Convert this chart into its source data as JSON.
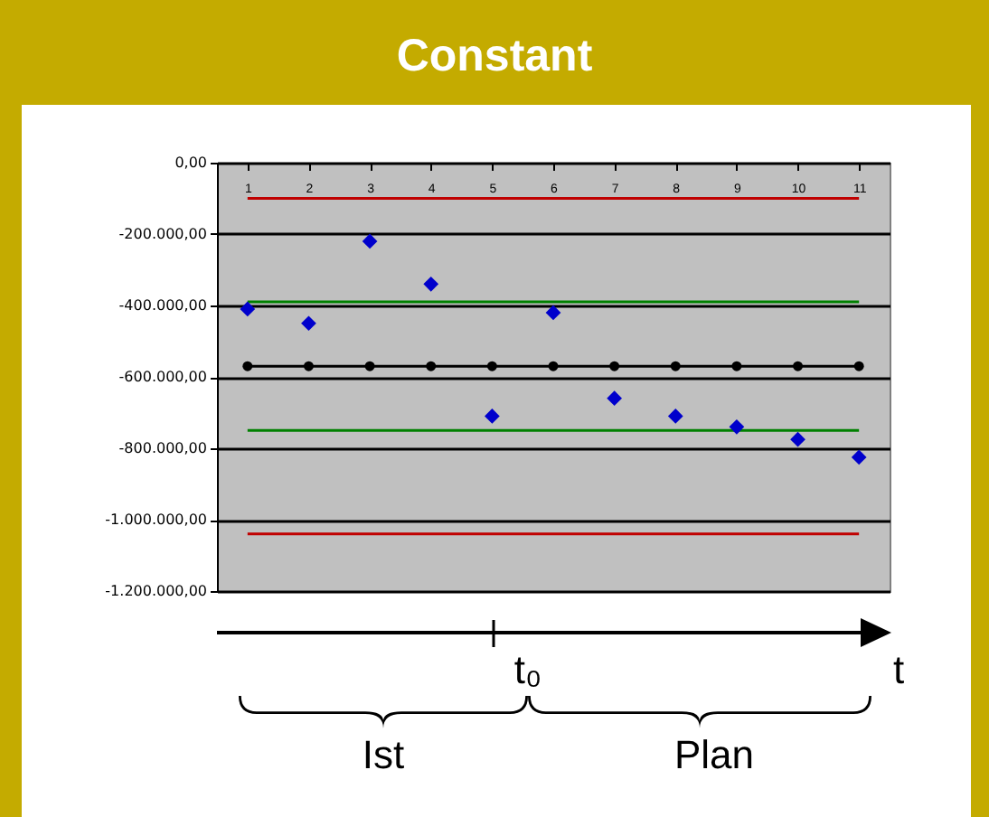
{
  "chart_data": {
    "type": "scatter",
    "title": "Constant",
    "categories": [
      "1",
      "2",
      "3",
      "4",
      "5",
      "6",
      "7",
      "8",
      "9",
      "10",
      "11"
    ],
    "series": [
      {
        "type": "line",
        "color": "#c00000",
        "marker": "none",
        "values": [
          -100000,
          -100000,
          -100000,
          -100000,
          -100000,
          -100000,
          -100000,
          -100000,
          -100000,
          -100000,
          -100000
        ]
      },
      {
        "type": "line",
        "color": "#008000",
        "marker": "none",
        "values": [
          -390000,
          -390000,
          -390000,
          -390000,
          -390000,
          -390000,
          -390000,
          -390000,
          -390000,
          -390000,
          -390000
        ]
      },
      {
        "type": "line",
        "color": "#000000",
        "marker": "circle",
        "values": [
          -570000,
          -570000,
          -570000,
          -570000,
          -570000,
          -570000,
          -570000,
          -570000,
          -570000,
          -570000,
          -570000
        ]
      },
      {
        "type": "line",
        "color": "#008000",
        "marker": "none",
        "values": [
          -750000,
          -750000,
          -750000,
          -750000,
          -750000,
          -750000,
          -750000,
          -750000,
          -750000,
          -750000,
          -750000
        ]
      },
      {
        "type": "line",
        "color": "#c00000",
        "marker": "none",
        "values": [
          -1040000,
          -1040000,
          -1040000,
          -1040000,
          -1040000,
          -1040000,
          -1040000,
          -1040000,
          -1040000,
          -1040000,
          -1040000
        ]
      },
      {
        "color": "#0000cc",
        "marker": "diamond",
        "values": [
          -410000,
          -450000,
          -220000,
          -340000,
          -710000,
          -420000,
          -660000,
          -710000,
          -740000,
          -775000,
          -825000
        ]
      }
    ],
    "ylim": [
      -1200000,
      0
    ],
    "yticks": [
      {
        "value": 0,
        "label": "0,00"
      },
      {
        "value": -200000,
        "label": "-200.000,00"
      },
      {
        "value": -400000,
        "label": "-400.000,00"
      },
      {
        "value": -600000,
        "label": "-600.000,00"
      },
      {
        "value": -800000,
        "label": "-800.000,00"
      },
      {
        "value": -1000000,
        "label": "-1.000.000,00"
      },
      {
        "value": -1200000,
        "label": "-1.200.000,00"
      }
    ],
    "grid": "y",
    "annotations": [
      "t₀",
      "t",
      "Ist",
      "Plan"
    ]
  }
}
